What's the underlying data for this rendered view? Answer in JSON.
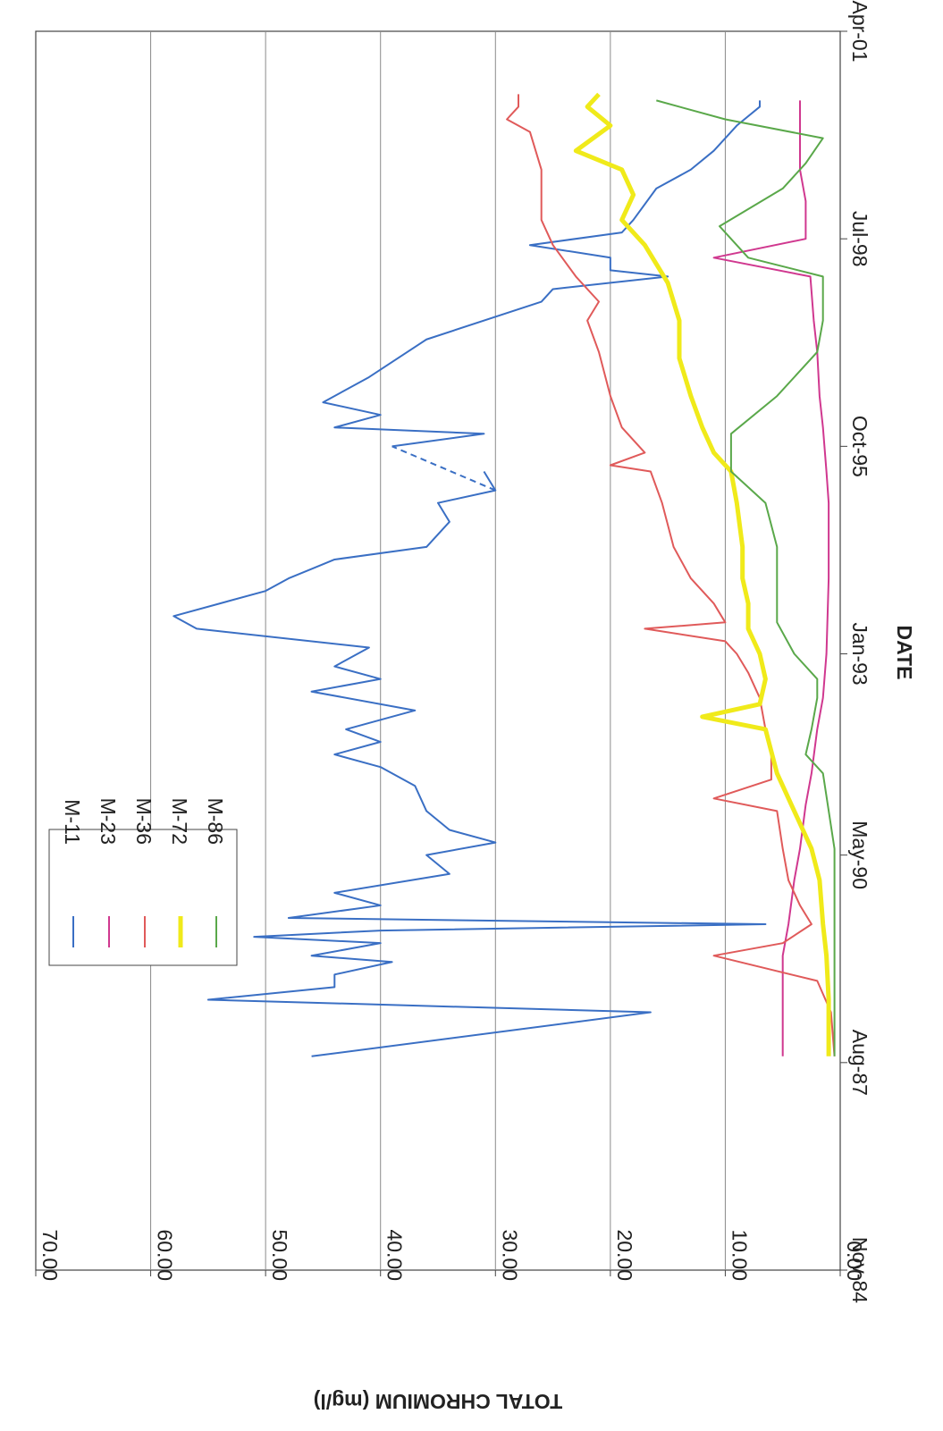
{
  "chart_data": {
    "type": "line",
    "xlabel": "DATE",
    "ylabel": "TOTAL CHROMIUM (mg/l)",
    "ylim": [
      0,
      70
    ],
    "xlim": [
      "1984-11",
      "2001-04"
    ],
    "x_ticks": [
      "Nov-84",
      "Aug-87",
      "May-90",
      "Jan-93",
      "Oct-95",
      "Jul-98",
      "Apr-01"
    ],
    "y_ticks": [
      "0.00",
      "10.00",
      "20.00",
      "30.00",
      "40.00",
      "50.00",
      "60.00",
      "70.00"
    ],
    "grid": "horizontal",
    "legend_position": "top-left",
    "orientation": "rotated 90 degrees clockwise",
    "series": [
      {
        "name": "M-11",
        "color": "#3a6fc4",
        "width": 2,
        "points": [
          [
            "1987-09",
            46
          ],
          [
            "1988-04",
            16.5
          ],
          [
            "1988-06",
            55
          ],
          [
            "1988-08",
            44
          ],
          [
            "1988-10",
            44
          ],
          [
            "1988-12",
            39
          ],
          [
            "1989-01",
            46
          ],
          [
            "1989-03",
            40
          ],
          [
            "1989-04",
            51
          ],
          [
            "1989-05",
            40
          ],
          [
            "1989-06",
            6.5
          ],
          [
            "1989-07",
            48
          ],
          [
            "1989-09",
            40
          ],
          [
            "1989-11",
            44
          ],
          [
            "1990-02",
            34
          ],
          [
            "1990-05",
            36
          ],
          [
            "1990-07",
            30
          ],
          [
            "1990-09",
            34
          ],
          [
            "1990-12",
            36
          ],
          [
            "1991-04",
            37
          ],
          [
            "1991-07",
            40
          ],
          [
            "1991-09",
            44
          ],
          [
            "1991-11",
            40
          ],
          [
            "1992-01",
            43
          ],
          [
            "1992-04",
            37
          ],
          [
            "1992-07",
            46
          ],
          [
            "1992-09",
            40
          ],
          [
            "1992-11",
            44
          ],
          [
            "1993-02",
            41
          ],
          [
            "1993-05",
            56
          ],
          [
            "1993-07",
            58
          ],
          [
            "1993-09",
            54
          ],
          [
            "1993-11",
            50
          ],
          [
            "1994-01",
            48
          ],
          [
            "1994-04",
            44
          ],
          [
            "1994-06",
            36
          ],
          [
            "1994-10",
            34
          ],
          [
            "1995-01",
            35
          ],
          [
            "1995-03",
            30
          ],
          [
            "1995-06",
            31
          ],
          [
            "1995-10",
            39
          ],
          [
            "1995-12",
            31
          ],
          [
            "1996-01",
            44
          ],
          [
            "1996-03",
            40
          ],
          [
            "1996-05",
            45
          ],
          [
            "1996-09",
            41
          ],
          [
            "1997-03",
            36
          ],
          [
            "1997-09",
            26
          ],
          [
            "1997-11",
            25
          ],
          [
            "1998-01",
            15
          ],
          [
            "1998-02",
            20
          ],
          [
            "1998-04",
            20
          ],
          [
            "1998-06",
            27
          ],
          [
            "1998-08",
            19
          ],
          [
            "1998-10",
            18
          ],
          [
            "1999-03",
            16
          ],
          [
            "1999-06",
            13
          ],
          [
            "1999-09",
            11
          ],
          [
            "2000-01",
            9
          ],
          [
            "2000-04",
            7
          ],
          [
            "2000-05",
            7
          ]
        ],
        "gap": {
          "from": [
            "1995-03",
            30
          ],
          "to": [
            "1995-10",
            39
          ],
          "style": "dashed"
        }
      },
      {
        "name": "M-23",
        "color": "#d0388f",
        "width": 2,
        "points": [
          [
            "1987-09",
            5
          ],
          [
            "1988-04",
            5
          ],
          [
            "1989-01",
            5
          ],
          [
            "1989-06",
            4.5
          ],
          [
            "1990-01",
            4
          ],
          [
            "1990-06",
            3.5
          ],
          [
            "1991-01",
            3
          ],
          [
            "1991-06",
            2.5
          ],
          [
            "1992-01",
            2
          ],
          [
            "1992-06",
            1.5
          ],
          [
            "1993-01",
            1.2
          ],
          [
            "1994-01",
            1.0
          ],
          [
            "1995-01",
            1.0
          ],
          [
            "1995-06",
            1.2
          ],
          [
            "1996-01",
            1.5
          ],
          [
            "1996-06",
            1.8
          ],
          [
            "1997-01",
            2
          ],
          [
            "1997-06",
            2.3
          ],
          [
            "1998-01",
            2.6
          ],
          [
            "1998-04",
            11
          ],
          [
            "1998-07",
            3
          ],
          [
            "1999-01",
            3
          ],
          [
            "1999-06",
            3.5
          ],
          [
            "2000-01",
            3.5
          ],
          [
            "2000-05",
            3.5
          ]
        ]
      },
      {
        "name": "M-36",
        "color": "#e05a5a",
        "width": 2,
        "points": [
          [
            "1987-09",
            0.5
          ],
          [
            "1988-04",
            0.8
          ],
          [
            "1988-09",
            2
          ],
          [
            "1989-01",
            11
          ],
          [
            "1989-03",
            5
          ],
          [
            "1989-06",
            2.5
          ],
          [
            "1989-09",
            3.5
          ],
          [
            "1990-01",
            4.5
          ],
          [
            "1990-06",
            5
          ],
          [
            "1990-12",
            5.5
          ],
          [
            "1991-02",
            11
          ],
          [
            "1991-05",
            6
          ],
          [
            "1991-09",
            6
          ],
          [
            "1992-01",
            6.5
          ],
          [
            "1992-06",
            7
          ],
          [
            "1992-10",
            8
          ],
          [
            "1993-01",
            9
          ],
          [
            "1993-03",
            10
          ],
          [
            "1993-05",
            17
          ],
          [
            "1993-06",
            10
          ],
          [
            "1993-09",
            11
          ],
          [
            "1994-01",
            13
          ],
          [
            "1994-06",
            14.5
          ],
          [
            "1995-01",
            15.5
          ],
          [
            "1995-06",
            16.5
          ],
          [
            "1995-07",
            20
          ],
          [
            "1995-09",
            17
          ],
          [
            "1996-01",
            19
          ],
          [
            "1996-06",
            20
          ],
          [
            "1997-01",
            21
          ],
          [
            "1997-06",
            22
          ],
          [
            "1997-09",
            21
          ],
          [
            "1998-01",
            23
          ],
          [
            "1998-06",
            25
          ],
          [
            "1998-10",
            26
          ],
          [
            "1999-06",
            26
          ],
          [
            "1999-12",
            27
          ],
          [
            "2000-02",
            29
          ],
          [
            "2000-04",
            28
          ],
          [
            "2000-06",
            28
          ]
        ]
      },
      {
        "name": "M-72",
        "color": "#f0ea1a",
        "width": 5,
        "points": [
          [
            "1987-09",
            1
          ],
          [
            "1988-06",
            1
          ],
          [
            "1989-01",
            1.2
          ],
          [
            "1989-06",
            1.5
          ],
          [
            "1990-01",
            1.8
          ],
          [
            "1990-06",
            2.5
          ],
          [
            "1990-12",
            4
          ],
          [
            "1991-06",
            5.5
          ],
          [
            "1992-01",
            6.5
          ],
          [
            "1992-03",
            12
          ],
          [
            "1992-05",
            7
          ],
          [
            "1992-09",
            6.5
          ],
          [
            "1993-01",
            7
          ],
          [
            "1993-05",
            8
          ],
          [
            "1993-09",
            8
          ],
          [
            "1994-01",
            8.5
          ],
          [
            "1994-06",
            8.5
          ],
          [
            "1995-01",
            9
          ],
          [
            "1995-06",
            9.5
          ],
          [
            "1995-09",
            11
          ],
          [
            "1996-01",
            12
          ],
          [
            "1996-06",
            13
          ],
          [
            "1996-12",
            14
          ],
          [
            "1997-06",
            14
          ],
          [
            "1997-12",
            15
          ],
          [
            "1998-06",
            17
          ],
          [
            "1998-10",
            19
          ],
          [
            "1999-02",
            18
          ],
          [
            "1999-06",
            19
          ],
          [
            "1999-09",
            23
          ],
          [
            "2000-01",
            20
          ],
          [
            "2000-04",
            22
          ],
          [
            "2000-06",
            21
          ]
        ]
      },
      {
        "name": "M-86",
        "color": "#5aa84a",
        "width": 2,
        "points": [
          [
            "1987-09",
            0.5
          ],
          [
            "1988-06",
            0.5
          ],
          [
            "1989-06",
            0.5
          ],
          [
            "1990-06",
            0.5
          ],
          [
            "1991-06",
            1.5
          ],
          [
            "1991-09",
            3
          ],
          [
            "1992-01",
            2.5
          ],
          [
            "1992-06",
            2
          ],
          [
            "1992-09",
            2
          ],
          [
            "1993-01",
            4
          ],
          [
            "1993-06",
            5.5
          ],
          [
            "1994-01",
            5.5
          ],
          [
            "1994-06",
            5.5
          ],
          [
            "1995-01",
            6.5
          ],
          [
            "1995-06",
            9.5
          ],
          [
            "1995-12",
            9.5
          ],
          [
            "1996-06",
            5.5
          ],
          [
            "1997-01",
            2
          ],
          [
            "1997-06",
            1.5
          ],
          [
            "1998-01",
            1.5
          ],
          [
            "1998-04",
            8
          ],
          [
            "1998-09",
            10.5
          ],
          [
            "1999-03",
            5
          ],
          [
            "1999-07",
            3
          ],
          [
            "1999-11",
            1.5
          ],
          [
            "2000-02",
            10
          ],
          [
            "2000-05",
            16
          ]
        ]
      }
    ]
  }
}
